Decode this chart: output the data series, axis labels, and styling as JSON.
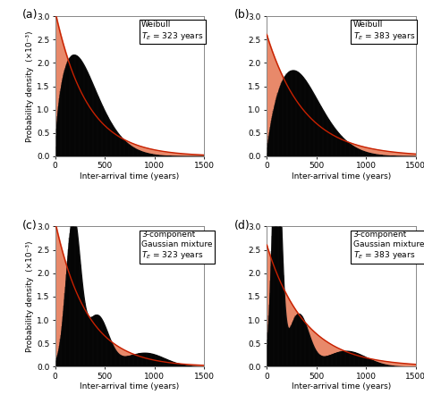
{
  "subplots": [
    {
      "label": "(a)",
      "model": "weibull",
      "T_E": 323,
      "annotation_line1": "Weibull",
      "annotation_line2": "$T_E$ = 323 years",
      "weibull_shape": 1.6,
      "weibull_scale": 350
    },
    {
      "label": "(b)",
      "model": "weibull",
      "T_E": 383,
      "annotation_line1": "Weibull",
      "annotation_line2": "$T_E$ = 383 years",
      "weibull_shape": 1.75,
      "weibull_scale": 430
    },
    {
      "label": "(c)",
      "model": "gaussian_mixture",
      "T_E": 323,
      "annotation_line1": "3-component",
      "annotation_line2": "Gaussian mixture",
      "annotation_line3": "$T_E$ = 323 years",
      "gmm_weights": [
        0.55,
        0.3,
        0.15
      ],
      "gmm_means": [
        180,
        420,
        900
      ],
      "gmm_stds": [
        70,
        110,
        200
      ]
    },
    {
      "label": "(d)",
      "model": "gaussian_mixture",
      "T_E": 383,
      "annotation_line1": "3-component",
      "annotation_line2": "Gaussian mixture",
      "annotation_line3": "$T_E$ = 383 years",
      "gmm_weights": [
        0.55,
        0.28,
        0.17
      ],
      "gmm_means": [
        100,
        320,
        800
      ],
      "gmm_stds": [
        45,
        100,
        200
      ]
    }
  ],
  "xlim": [
    0,
    1500
  ],
  "ylim": [
    0,
    3.0
  ],
  "yticks": [
    0.0,
    0.5,
    1.0,
    1.5,
    2.0,
    2.5,
    3.0
  ],
  "xticks": [
    0,
    500,
    1000,
    1500
  ],
  "xlabel": "Inter-arrival time (years)",
  "ylabel": "Probability density  (×10⁻³)",
  "fill_black_color": "#111111",
  "fill_red_color": "#e8896a",
  "line_red_color": "#c82000",
  "background_color": "#ffffff",
  "n_vlines": 300
}
